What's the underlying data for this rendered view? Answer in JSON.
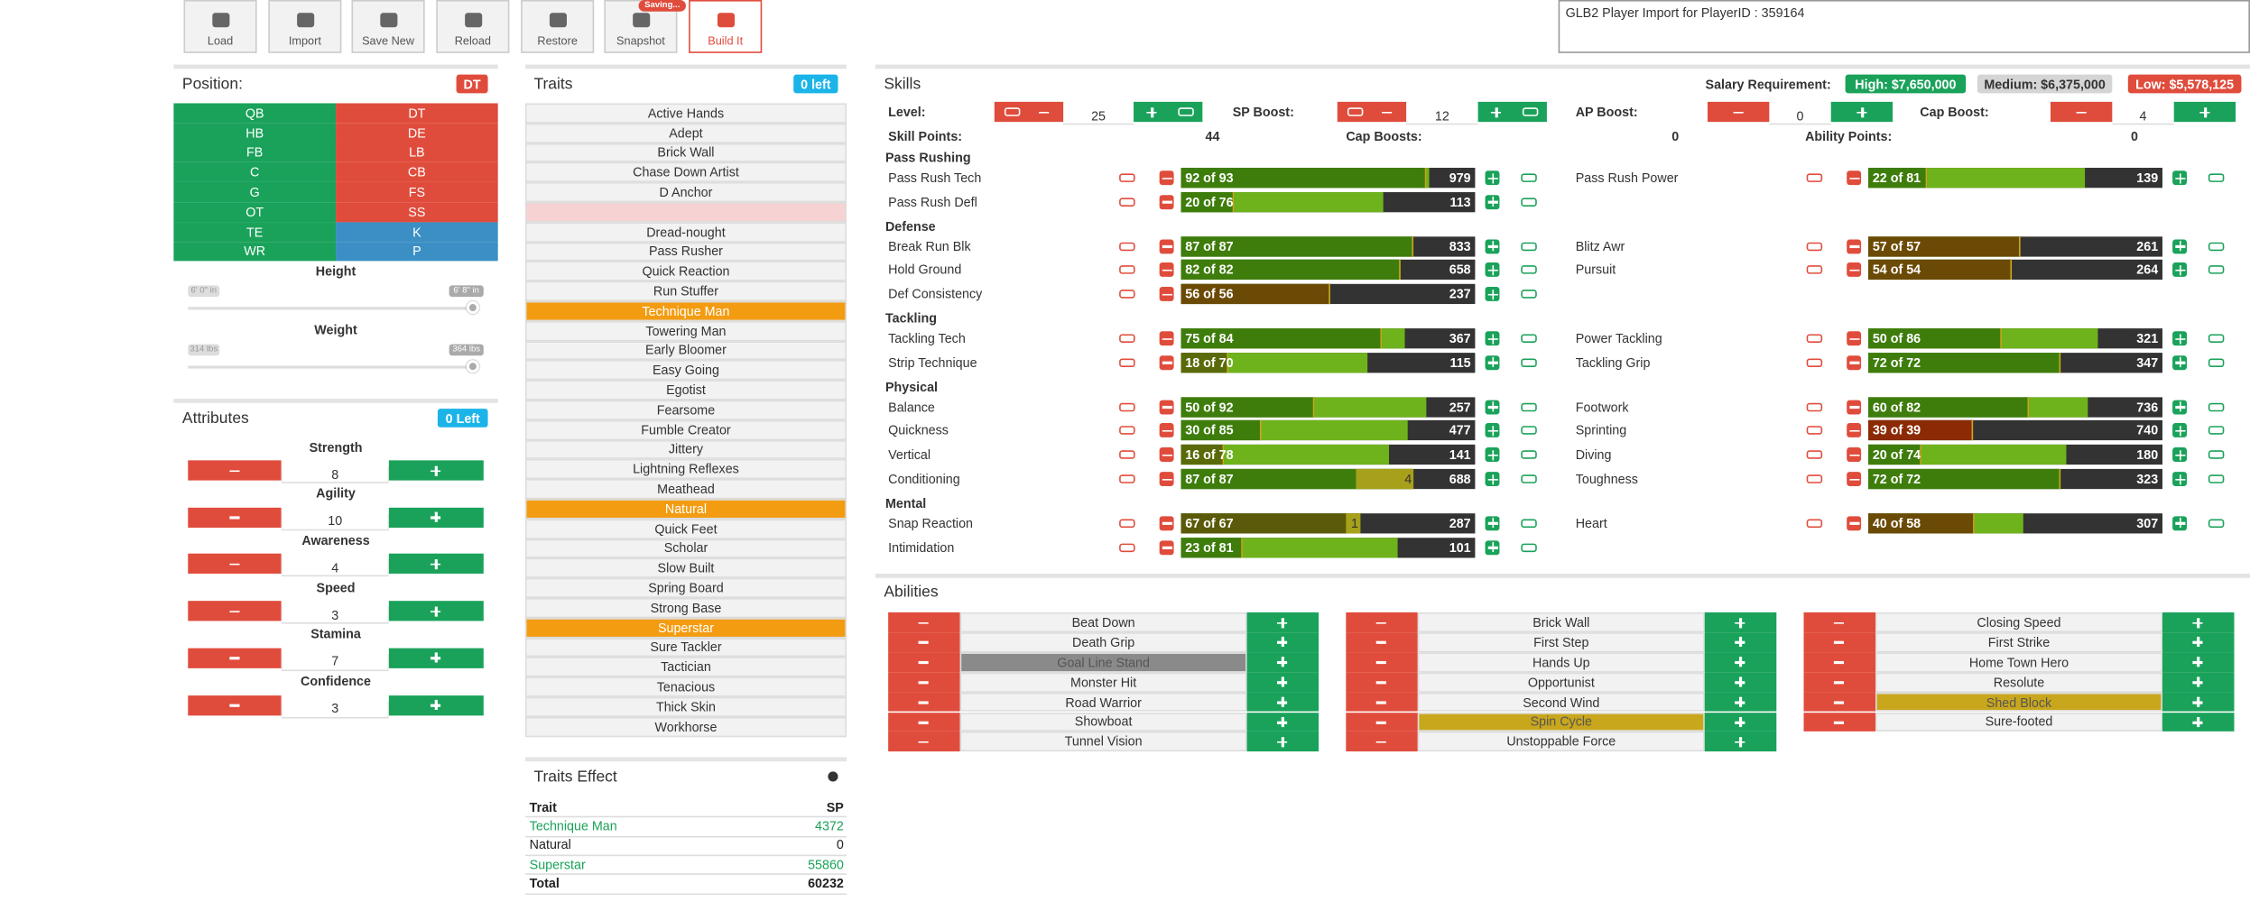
{
  "toolbar": {
    "buttons": [
      "Load",
      "Import",
      "Save New",
      "Reload",
      "Restore",
      "Snapshot",
      "Build It"
    ],
    "status": "Saving..."
  },
  "import_box": "GLB2 Player Import for PlayerID : 359164",
  "position": {
    "title": "Position:",
    "selected": "DT",
    "grid": [
      [
        {
          "name": "QB",
          "color": "#1aa25a"
        },
        {
          "name": "DT",
          "color": "#e04c3c"
        }
      ],
      [
        {
          "name": "HB",
          "color": "#1aa25a"
        },
        {
          "name": "DE",
          "color": "#e04c3c"
        }
      ],
      [
        {
          "name": "FB",
          "color": "#1aa25a"
        },
        {
          "name": "LB",
          "color": "#e04c3c"
        }
      ],
      [
        {
          "name": "C",
          "color": "#1aa25a"
        },
        {
          "name": "CB",
          "color": "#e04c3c"
        }
      ],
      [
        {
          "name": "G",
          "color": "#1aa25a"
        },
        {
          "name": "FS",
          "color": "#e04c3c"
        }
      ],
      [
        {
          "name": "OT",
          "color": "#1aa25a"
        },
        {
          "name": "SS",
          "color": "#e04c3c"
        }
      ],
      [
        {
          "name": "TE",
          "color": "#1aa25a"
        },
        {
          "name": "K",
          "color": "#3b8fc4"
        }
      ],
      [
        {
          "name": "WR",
          "color": "#1aa25a"
        },
        {
          "name": "P",
          "color": "#3b8fc4"
        }
      ]
    ],
    "height": {
      "label": "Height",
      "min": "6' 0\" in",
      "max": "6' 8\" in"
    },
    "weight": {
      "label": "Weight",
      "min": "314 lbs",
      "max": "364 lbs"
    }
  },
  "attributes": {
    "title": "Attributes",
    "remaining": "0 Left",
    "items": [
      {
        "name": "Strength",
        "value": 8
      },
      {
        "name": "Agility",
        "value": 10
      },
      {
        "name": "Awareness",
        "value": 4
      },
      {
        "name": "Speed",
        "value": 3
      },
      {
        "name": "Stamina",
        "value": 7
      },
      {
        "name": "Confidence",
        "value": 3
      }
    ]
  },
  "traits": {
    "title": "Traits",
    "remaining": "0 left",
    "items": [
      {
        "name": "Active Hands",
        "state": "normal"
      },
      {
        "name": "Adept",
        "state": "normal"
      },
      {
        "name": "Brick Wall",
        "state": "normal"
      },
      {
        "name": "Chase Down Artist",
        "state": "normal"
      },
      {
        "name": "D Anchor",
        "state": "normal"
      },
      {
        "name": null,
        "state": "blocked"
      },
      {
        "name": "Dread-nought",
        "state": "normal"
      },
      {
        "name": "Pass Rusher",
        "state": "normal"
      },
      {
        "name": "Quick Reaction",
        "state": "normal"
      },
      {
        "name": "Run Stuffer",
        "state": "normal"
      },
      {
        "name": "Technique Man",
        "state": "selected"
      },
      {
        "name": "Towering Man",
        "state": "normal"
      },
      {
        "name": "Early Bloomer",
        "state": "normal"
      },
      {
        "name": "Easy Going",
        "state": "normal"
      },
      {
        "name": "Egotist",
        "state": "normal"
      },
      {
        "name": "Fearsome",
        "state": "normal"
      },
      {
        "name": "Fumble Creator",
        "state": "normal"
      },
      {
        "name": "Jittery",
        "state": "normal"
      },
      {
        "name": "Lightning Reflexes",
        "state": "normal"
      },
      {
        "name": "Meathead",
        "state": "normal"
      },
      {
        "name": "Natural",
        "state": "selected"
      },
      {
        "name": "Quick Feet",
        "state": "normal"
      },
      {
        "name": "Scholar",
        "state": "normal"
      },
      {
        "name": "Slow Built",
        "state": "normal"
      },
      {
        "name": "Spring Board",
        "state": "normal"
      },
      {
        "name": "Strong Base",
        "state": "normal"
      },
      {
        "name": "Superstar",
        "state": "selected"
      },
      {
        "name": "Sure Tackler",
        "state": "normal"
      },
      {
        "name": "Tactician",
        "state": "normal"
      },
      {
        "name": "Tenacious",
        "state": "normal"
      },
      {
        "name": "Thick Skin",
        "state": "normal"
      },
      {
        "name": "Workhorse",
        "state": "normal"
      }
    ]
  },
  "traits_effect": {
    "title": "Traits Effect",
    "header": [
      "Trait",
      "SP"
    ],
    "rows": [
      {
        "trait": "Technique Man",
        "sp": 4372,
        "color": "#1aa25a"
      },
      {
        "trait": "Natural",
        "sp": 0,
        "color": "#222222"
      },
      {
        "trait": "Superstar",
        "sp": 55860,
        "color": "#1aa25a"
      }
    ],
    "total": {
      "trait": "Total",
      "sp": 60232
    }
  },
  "skills": {
    "title": "Skills",
    "salary_label": "Salary Requirement:",
    "salary": [
      {
        "text": "High: $7,650,000",
        "color": "#1aa25a"
      },
      {
        "text": "Medium: $6,375,000",
        "color": "#d5d5d5"
      },
      {
        "text": "Low: $5,578,125",
        "color": "#e04c3c"
      }
    ],
    "controls": [
      {
        "label": "Level:",
        "value": 25
      },
      {
        "label": "SP Boost:",
        "value": 12
      },
      {
        "label": "AP Boost:",
        "value": 0
      },
      {
        "label": "Cap Boost:",
        "value": 4
      }
    ],
    "points": [
      {
        "label": "Skill Points:",
        "value": 44
      },
      {
        "label": "Cap Boosts:",
        "value": 0
      },
      {
        "label": "Ability Points:",
        "value": 0
      }
    ],
    "groups": [
      {
        "name": "Pass Rushing",
        "left": [
          {
            "name": "Pass Rush Tech",
            "value": 92,
            "cap": 93,
            "label": "92 of 93",
            "cost": 979,
            "color": "#3e7d0c"
          },
          {
            "name": "Pass Rush Defl",
            "value": 20,
            "cap": 76,
            "label": "20 of 76",
            "cost": 113,
            "color": "#3e7d0c"
          }
        ],
        "right": [
          {
            "name": "Pass Rush Power",
            "value": 22,
            "cap": 81,
            "label": "22 of 81",
            "cost": 139,
            "color": "#3e7d0c"
          }
        ]
      },
      {
        "name": "Defense",
        "left": [
          {
            "name": "Break Run Blk",
            "value": 87,
            "cap": 87,
            "label": "87 of 87",
            "cost": 833,
            "color": "#3e7d0c"
          },
          {
            "name": "Hold Ground",
            "value": 82,
            "cap": 82,
            "label": "82 of 82",
            "cost": 658,
            "color": "#3e7d0c"
          },
          {
            "name": "Def Consistency",
            "value": 56,
            "cap": 56,
            "label": "56 of 56",
            "cost": 237,
            "color": "#6b4a05"
          }
        ],
        "right": [
          {
            "name": "Blitz Awr",
            "value": 57,
            "cap": 57,
            "label": "57 of 57",
            "cost": 261,
            "color": "#6b4a05"
          },
          {
            "name": "Pursuit",
            "value": 54,
            "cap": 54,
            "label": "54 of 54",
            "cost": 264,
            "color": "#6b4a05"
          }
        ]
      },
      {
        "name": "Tackling",
        "left": [
          {
            "name": "Tackling Tech",
            "value": 75,
            "cap": 84,
            "label": "75 of 84",
            "cost": 367,
            "color": "#3e7d0c"
          },
          {
            "name": "Strip Technique",
            "value": 18,
            "cap": 70,
            "label": "18 of 70",
            "cost": 115,
            "color": "#5a6a0a"
          }
        ],
        "right": [
          {
            "name": "Power Tackling",
            "value": 50,
            "cap": 86,
            "label": "50 of 86",
            "cost": 321,
            "color": "#3e7d0c"
          },
          {
            "name": "Tackling Grip",
            "value": 72,
            "cap": 72,
            "label": "72 of 72",
            "cost": 347,
            "color": "#3e7d0c"
          }
        ]
      },
      {
        "name": "Physical",
        "left": [
          {
            "name": "Balance",
            "value": 50,
            "cap": 92,
            "label": "50 of 92",
            "cost": 257,
            "color": "#3e7d0c"
          },
          {
            "name": "Quickness",
            "value": 30,
            "cap": 85,
            "label": "30 of 85",
            "cost": 477,
            "color": "#3e7d0c"
          },
          {
            "name": "Vertical",
            "value": 16,
            "cap": 78,
            "label": "16 of 78",
            "cost": 141,
            "color": "#5a6a0a"
          },
          {
            "name": "Conditioning",
            "value": 87,
            "cap": 87,
            "label": "87 of 87",
            "boost": 4,
            "cost": 688,
            "color": "#3e7d0c"
          }
        ],
        "right": [
          {
            "name": "Footwork",
            "value": 60,
            "cap": 82,
            "label": "60 of 82",
            "cost": 736,
            "color": "#3e7d0c"
          },
          {
            "name": "Sprinting",
            "value": 39,
            "cap": 39,
            "label": "39 of 39",
            "cost": 740,
            "color": "#8b2a05"
          },
          {
            "name": "Diving",
            "value": 20,
            "cap": 74,
            "label": "20 of 74",
            "cost": 180,
            "color": "#3e7d0c"
          },
          {
            "name": "Toughness",
            "value": 72,
            "cap": 72,
            "label": "72 of 72",
            "cost": 323,
            "color": "#3e7d0c"
          }
        ]
      },
      {
        "name": "Mental",
        "left": [
          {
            "name": "Snap Reaction",
            "value": 67,
            "cap": 67,
            "label": "67 of 67",
            "boost": 1,
            "cost": 287,
            "color": "#5a5a0a"
          },
          {
            "name": "Intimidation",
            "value": 23,
            "cap": 81,
            "label": "23 of 81",
            "cost": 101,
            "color": "#3e7d0c"
          }
        ],
        "right": [
          {
            "name": "Heart",
            "value": 40,
            "cap": 58,
            "label": "40 of 58",
            "cost": 307,
            "color": "#6b4a05"
          }
        ]
      }
    ]
  },
  "abilities": {
    "title": "Abilities",
    "columns": [
      [
        {
          "name": "Beat Down"
        },
        {
          "name": "Death Grip"
        },
        {
          "name": "Goal Line Stand",
          "color": "#8a8a8a"
        },
        {
          "name": "Monster Hit"
        },
        {
          "name": "Road Warrior"
        },
        {
          "name": "Showboat"
        },
        {
          "name": "Tunnel Vision"
        }
      ],
      [
        {
          "name": "Brick Wall"
        },
        {
          "name": "First Step"
        },
        {
          "name": "Hands Up"
        },
        {
          "name": "Opportunist"
        },
        {
          "name": "Second Wind"
        },
        {
          "name": "Spin Cycle",
          "color": "#c9a71c"
        },
        {
          "name": "Unstoppable Force"
        }
      ],
      [
        {
          "name": "Closing Speed"
        },
        {
          "name": "First Strike"
        },
        {
          "name": "Home Town Hero"
        },
        {
          "name": "Resolute"
        },
        {
          "name": "Shed Block",
          "color": "#c9a71c"
        },
        {
          "name": "Sure-footed"
        }
      ]
    ]
  }
}
